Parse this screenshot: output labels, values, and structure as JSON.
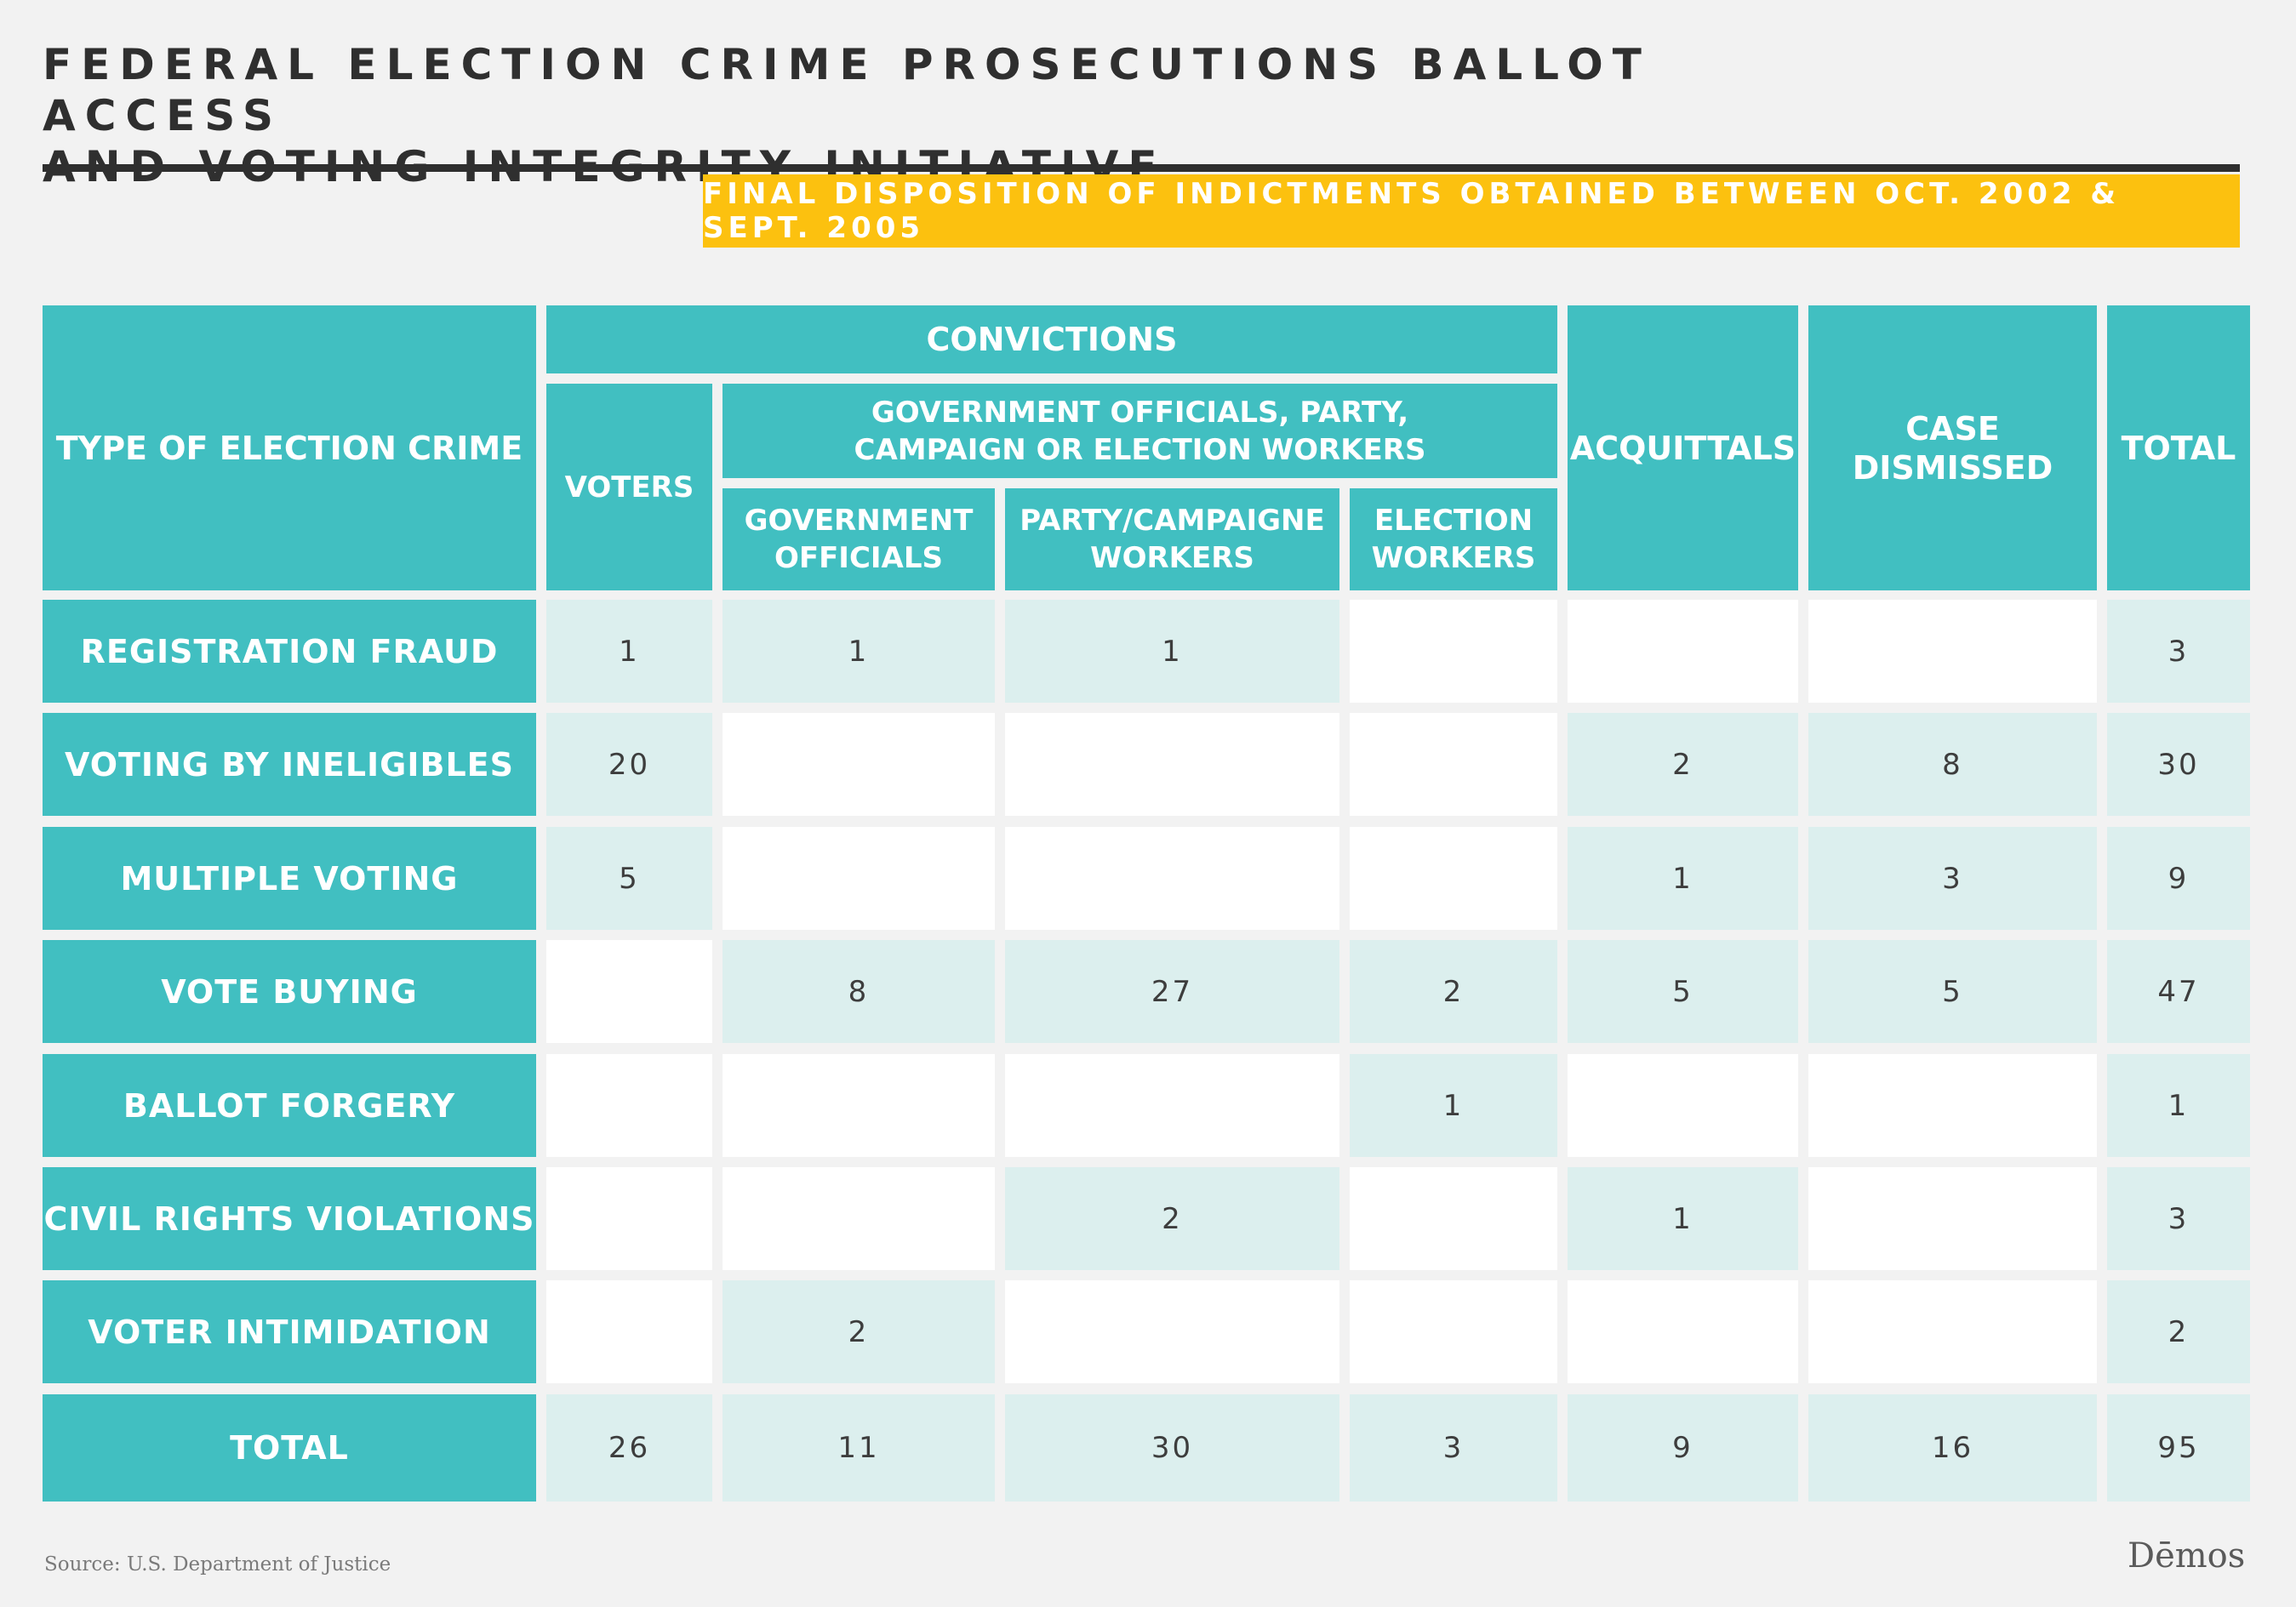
{
  "title_lines": [
    "FEDERAL ELECTION CRIME PROSECUTIONS BALLOT ACCESS",
    "AND VOTING INTEGRITY INITIATIVE"
  ],
  "subtitle": "FINAL DISPOSITION OF INDICTMENTS OBTAINED BETWEEN OCT. 2002 & SEPT. 2005",
  "headers": {
    "type": "TYPE OF ELECTION CRIME",
    "convictions": "CONVICTIONS",
    "voters": "VOTERS",
    "gov_group": "GOVERNMENT OFFICIALS, PARTY, CAMPAIGN OR  ELECTION WORKERS",
    "gov_officials": "GOVERNMENT OFFICIALS",
    "party": "PARTY/CAMPAIGNE WORKERS",
    "election": "ELECTION WORKERS",
    "acquittals": "ACQUITTALS",
    "dismissed": "CASE DISMISSED",
    "total": "TOTAL"
  },
  "chart_data": {
    "type": "table",
    "title": "FEDERAL ELECTION CRIME PROSECUTIONS BALLOT ACCESS AND VOTING INTEGRITY INITIATIVE",
    "subtitle": "FINAL DISPOSITION OF INDICTMENTS OBTAINED BETWEEN OCT. 2002 & SEPT. 2005",
    "columns": [
      "VOTERS",
      "GOVERNMENT OFFICIALS",
      "PARTY/CAMPAIGNE WORKERS",
      "ELECTION WORKERS",
      "ACQUITTALS",
      "CASE DISMISSED",
      "TOTAL"
    ],
    "rows": [
      {
        "label": "REGISTRATION FRAUD",
        "values": [
          "1",
          "1",
          "1",
          "",
          "",
          "",
          "3"
        ]
      },
      {
        "label": "VOTING BY INELIGIBLES",
        "values": [
          "20",
          "",
          "",
          "",
          "2",
          "8",
          "30"
        ]
      },
      {
        "label": "MULTIPLE VOTING",
        "values": [
          "5",
          "",
          "",
          "",
          "1",
          "3",
          "9"
        ]
      },
      {
        "label": "VOTE BUYING",
        "values": [
          "",
          "8",
          "27",
          "2",
          "5",
          "5",
          "47"
        ]
      },
      {
        "label": "BALLOT FORGERY",
        "values": [
          "",
          "",
          "",
          "1",
          "",
          "",
          "1"
        ]
      },
      {
        "label": "CIVIL RIGHTS VIOLATIONS",
        "values": [
          "",
          "",
          "2",
          "",
          "1",
          "",
          "3"
        ]
      },
      {
        "label": "VOTER INTIMIDATION",
        "values": [
          "",
          "2",
          "",
          "",
          "",
          "",
          "2"
        ]
      },
      {
        "label": "TOTAL",
        "values": [
          "26",
          "11",
          "30",
          "3",
          "9",
          "16",
          "95"
        ]
      }
    ]
  },
  "source": "Source: U.S. Department of Justice",
  "logo": "Dēmos",
  "colors": {
    "teal": "#41bfc1",
    "light_teal": "#dcefee",
    "yellow": "#fcc10f",
    "dark": "#2f2f2f"
  }
}
